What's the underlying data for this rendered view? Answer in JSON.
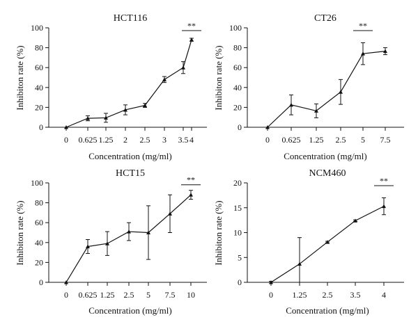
{
  "chart_data": [
    {
      "type": "line",
      "title": "HCT116",
      "xlabel": "Concentration (mg/ml)",
      "ylabel": "Inhibiton rate (%)",
      "ylim": [
        0,
        100
      ],
      "yticks": [
        0,
        20,
        40,
        60,
        80,
        100
      ],
      "categories": [
        "0",
        "0.625",
        "1.25",
        "2",
        "2.5",
        "3",
        "3.5",
        "4"
      ],
      "values": [
        0,
        9,
        9.5,
        17.5,
        22,
        48,
        60,
        88
      ],
      "errors": [
        0,
        2.5,
        4.5,
        5,
        2,
        3,
        6,
        1.5
      ],
      "significance": {
        "label": "**",
        "at": "4"
      },
      "grid": false
    },
    {
      "type": "line",
      "title": "CT26",
      "xlabel": "Concentration (mg/ml)",
      "ylabel": "Inhibiton rate (%)",
      "ylim": [
        0,
        100
      ],
      "yticks": [
        0,
        20,
        40,
        60,
        80,
        100
      ],
      "categories": [
        "0",
        "0.625",
        "1.25",
        "2.5",
        "5",
        "7.5"
      ],
      "values": [
        0,
        22.5,
        16.5,
        35.5,
        74,
        76.5
      ],
      "errors": [
        0,
        10,
        7,
        12.5,
        11,
        3.5
      ],
      "significance": {
        "label": "**",
        "at": "5"
      },
      "grid": false
    },
    {
      "type": "line",
      "title": "HCT15",
      "xlabel": "Concentration (mg/ml)",
      "ylabel": "Inhibiton rate (%)",
      "ylim": [
        0,
        100
      ],
      "yticks": [
        0,
        20,
        40,
        60,
        80,
        100
      ],
      "categories": [
        "0",
        "0.625",
        "1.25",
        "2.5",
        "5",
        "7.5",
        "10"
      ],
      "values": [
        0,
        36,
        39,
        51,
        50,
        69,
        88
      ],
      "errors": [
        0,
        7,
        12,
        9,
        27,
        19,
        4.5
      ],
      "significance": {
        "label": "**",
        "at": "10"
      },
      "grid": false
    },
    {
      "type": "line",
      "title": "NCM460",
      "xlabel": "Concentration (mg/ml)",
      "ylabel": "Inhibiton rate (%)",
      "ylim": [
        0,
        20
      ],
      "yticks": [
        0,
        5,
        10,
        15,
        20
      ],
      "categories": [
        "0",
        "1.25",
        "2.5",
        "3.5",
        "4"
      ],
      "values": [
        0,
        3.7,
        8.1,
        12.4,
        15.3
      ],
      "errors": [
        0.2,
        5.3,
        0.15,
        0.15,
        1.7
      ],
      "significance": {
        "label": "**",
        "at": "4"
      },
      "grid": false
    }
  ]
}
